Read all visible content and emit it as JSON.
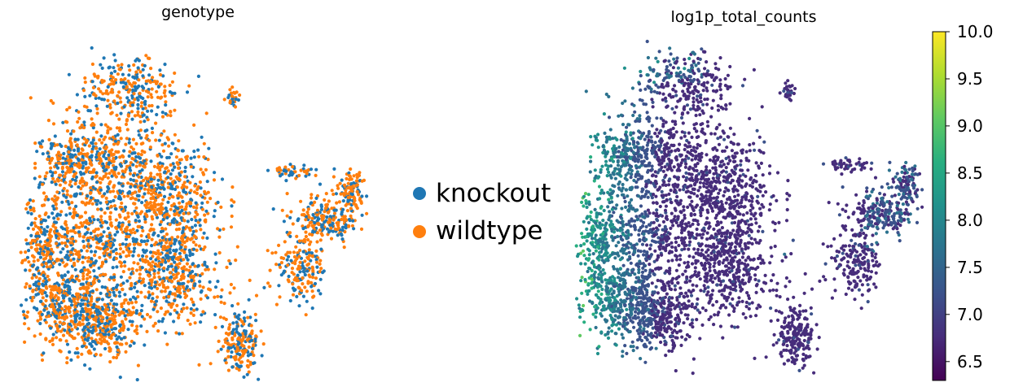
{
  "chart_data": [
    {
      "type": "scatter",
      "title": "genotype",
      "xlabel": "",
      "ylabel": "",
      "axes_visible": false,
      "legend": {
        "placement": "right",
        "entries": [
          {
            "label": "knockout",
            "color": "#1f77b4"
          },
          {
            "label": "wildtype",
            "color": "#ff7f0e"
          }
        ]
      },
      "series": [
        {
          "name": "knockout",
          "color": "#1f77b4",
          "approx_share": 0.4
        },
        {
          "name": "wildtype",
          "color": "#ff7f0e",
          "approx_share": 0.6
        }
      ]
    },
    {
      "type": "scatter",
      "title": "log1p_total_counts",
      "xlabel": "",
      "ylabel": "",
      "axes_visible": false,
      "colorbar": {
        "colormap": "viridis",
        "range": [
          6.3,
          10.0
        ],
        "ticks": [
          6.5,
          7.0,
          7.5,
          8.0,
          8.5,
          9.0,
          9.5,
          10.0
        ],
        "tick_labels": [
          "6.5",
          "7.0",
          "7.5",
          "8.0",
          "8.5",
          "9.0",
          "9.5",
          "10.0"
        ],
        "placement": "right"
      }
    }
  ]
}
